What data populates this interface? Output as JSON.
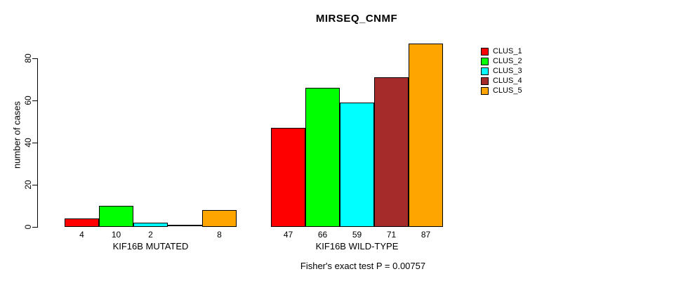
{
  "chart_data": {
    "type": "bar",
    "title": "MIRSEQ_CNMF",
    "ylabel": "number of cases",
    "ylim": [
      0,
      80
    ],
    "yticks": [
      0,
      20,
      40,
      60,
      80
    ],
    "grid": false,
    "legend_position": "right",
    "categories": [
      "KIF16B MUTATED",
      "KIF16B WILD-TYPE"
    ],
    "series": [
      {
        "name": "CLUS_1",
        "color": "#FF0000",
        "values": [
          4,
          47
        ]
      },
      {
        "name": "CLUS_2",
        "color": "#00FF00",
        "values": [
          10,
          66
        ]
      },
      {
        "name": "CLUS_3",
        "color": "#00FFFF",
        "values": [
          2,
          59
        ]
      },
      {
        "name": "CLUS_4",
        "color": "#A52A2A",
        "values": [
          0,
          71
        ]
      },
      {
        "name": "CLUS_5",
        "color": "#FFA500",
        "values": [
          8,
          87
        ]
      }
    ],
    "bar_value_labels": {
      "KIF16B MUTATED": [
        "4",
        "10",
        "2",
        "",
        "8"
      ],
      "KIF16B WILD-TYPE": [
        "47",
        "66",
        "59",
        "71",
        "87"
      ]
    },
    "note": "Fisher's exact test P = 0.00757"
  }
}
